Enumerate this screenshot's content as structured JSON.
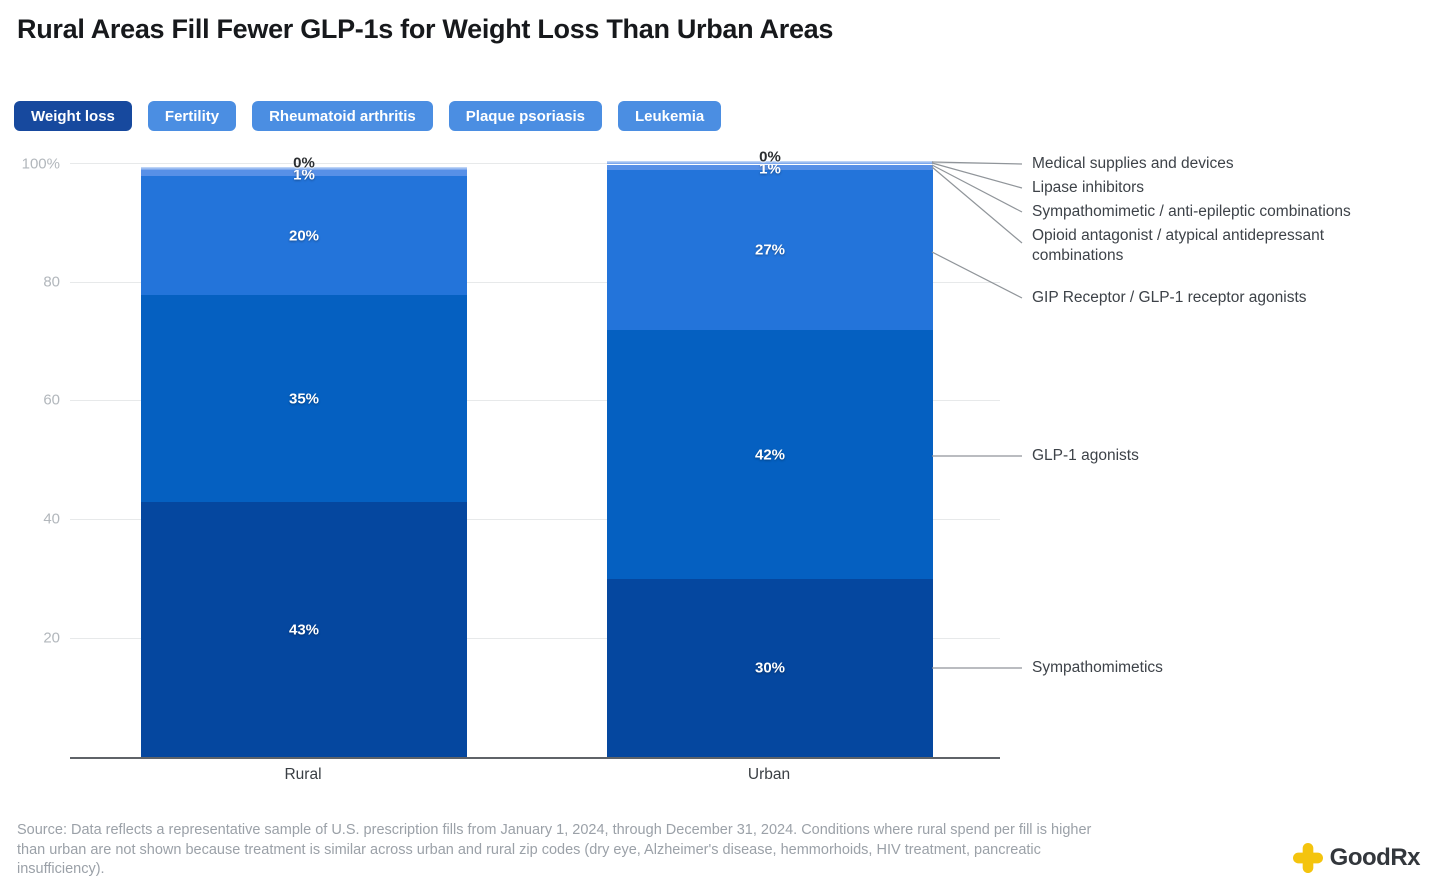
{
  "title": "Rural Areas Fill Fewer GLP-1s for Weight Loss Than Urban Areas",
  "tabs": [
    {
      "label": "Weight loss",
      "active": true
    },
    {
      "label": "Fertility",
      "active": false
    },
    {
      "label": "Rheumatoid arthritis",
      "active": false
    },
    {
      "label": "Plaque psoriasis",
      "active": false
    },
    {
      "label": "Leukemia",
      "active": false
    }
  ],
  "chart_data": {
    "type": "bar",
    "subtype": "stacked-percent",
    "categories": [
      "Rural",
      "Urban"
    ],
    "series": [
      {
        "name": "Sympathomimetics",
        "color": "#05479f",
        "values": [
          43,
          30
        ]
      },
      {
        "name": "GLP-1 agonists",
        "color": "#0560c1",
        "values": [
          35,
          42
        ]
      },
      {
        "name": "GIP Receptor / GLP-1 receptor agonists",
        "color": "#2374da",
        "values": [
          20,
          27
        ]
      },
      {
        "name": "Opioid antagonist / atypical antidepressant combinations",
        "color": "#5790e7",
        "values": [
          1,
          1
        ]
      },
      {
        "name": "Sympathomimetic / anti-epileptic combinations",
        "color": "#7fa9ed",
        "values": [
          0,
          0
        ]
      },
      {
        "name": "Lipase inhibitors",
        "color": "#9cbdf1",
        "values": [
          0,
          0
        ]
      },
      {
        "name": "Medical supplies and devices",
        "color": "#bcd3f6",
        "values": [
          0,
          0
        ]
      }
    ],
    "y_ticks": [
      "100%",
      "80",
      "60",
      "40",
      "20"
    ],
    "ylim": [
      0,
      100
    ],
    "grid": true,
    "legend_position": "right-callouts",
    "bar_value_suffix": "%"
  },
  "footer": {
    "source_lines": [
      "Source: Data reflects a representative sample of U.S. prescription fills from January 1, 2024, through December 31, 2024. Conditions where rural spend per fill is higher",
      "than urban are not shown because treatment is similar across urban and rural zip codes (dry eye, Alzheimer's disease, hemmorhoids, HIV treatment, pancreatic",
      "insufficiency)."
    ]
  },
  "logo": {
    "text": "GoodRx",
    "accent_color": "#f4c40e"
  }
}
